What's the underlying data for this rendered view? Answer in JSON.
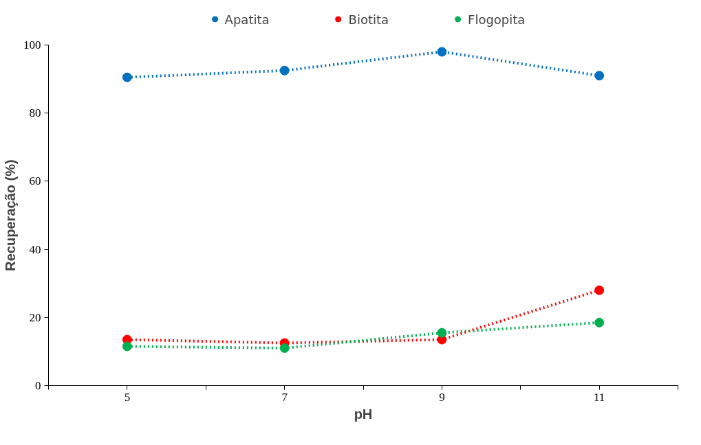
{
  "chart_data": {
    "type": "line",
    "xlabel": "pH",
    "ylabel": "Recuperação (%)",
    "x": [
      5,
      7,
      9,
      11
    ],
    "series": [
      {
        "name": "Apatita",
        "color": "#0070c0",
        "values": [
          90.5,
          92.5,
          98,
          91
        ]
      },
      {
        "name": "Biotita",
        "color": "#ff0000",
        "values": [
          13.5,
          12.5,
          13.5,
          28
        ]
      },
      {
        "name": "Flogopita",
        "color": "#00b050",
        "values": [
          11.5,
          11,
          15.5,
          18.5
        ]
      }
    ],
    "xlim": [
      4,
      12
    ],
    "xticks": [
      {
        "value": 4,
        "label": null
      },
      5,
      {
        "value": 6,
        "label": null
      },
      7,
      {
        "value": 8,
        "label": null
      },
      9,
      {
        "value": 10,
        "label": null
      },
      11,
      {
        "value": 12,
        "label": null
      }
    ],
    "ylim": [
      0,
      100
    ],
    "yticks": [
      0,
      20,
      40,
      60,
      80,
      100
    ],
    "grid": false,
    "legend": "top",
    "marker": "circle",
    "line_style": "dotted"
  }
}
